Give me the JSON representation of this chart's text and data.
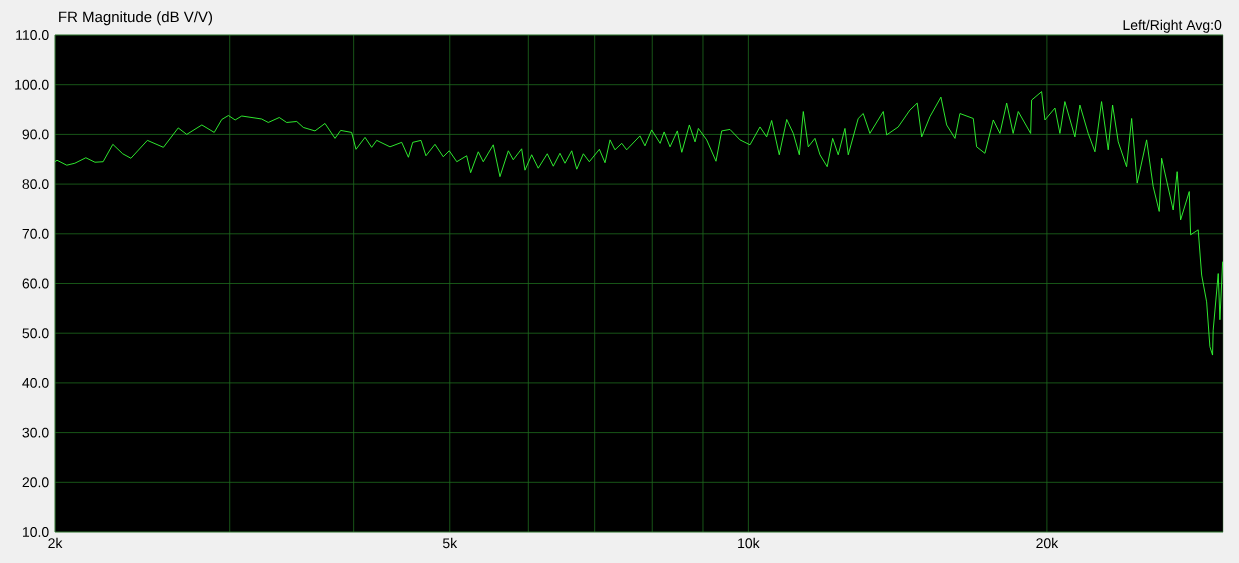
{
  "chart_data": {
    "type": "line",
    "title": "FR Magnitude (dB V/V)",
    "annotations": [
      "Left/Right  Avg:0"
    ],
    "log": "x",
    "grid": true,
    "marker": "none",
    "line_style": "solid",
    "xlim": [
      2000,
      30100
    ],
    "ylim": [
      10,
      110
    ],
    "xticks": [
      {
        "value": 2000,
        "label": "2k"
      },
      {
        "value": 3000,
        "label": null
      },
      {
        "value": 4000,
        "label": null
      },
      {
        "value": 5000,
        "label": "5k"
      },
      {
        "value": 6000,
        "label": null
      },
      {
        "value": 7000,
        "label": null
      },
      {
        "value": 8000,
        "label": null
      },
      {
        "value": 9000,
        "label": null
      },
      {
        "value": 10000,
        "label": "10k"
      },
      {
        "value": 20000,
        "label": "20k"
      }
    ],
    "yticks": [
      {
        "value": 10,
        "label": "10.0"
      },
      {
        "value": 20,
        "label": "20.0"
      },
      {
        "value": 30,
        "label": "30.0"
      },
      {
        "value": 40,
        "label": "40.0"
      },
      {
        "value": 50,
        "label": "50.0"
      },
      {
        "value": 60,
        "label": "60.0"
      },
      {
        "value": 70,
        "label": "70.0"
      },
      {
        "value": 80,
        "label": "80.0"
      },
      {
        "value": 90,
        "label": "90.0"
      },
      {
        "value": 100,
        "label": "100.0"
      },
      {
        "value": 110,
        "label": "110.0"
      }
    ],
    "x": [
      2000,
      2009,
      2055,
      2094,
      2148,
      2194,
      2236,
      2287,
      2340,
      2385,
      2478,
      2572,
      2662,
      2715,
      2812,
      2894,
      2945,
      2991,
      3038,
      3085,
      3231,
      3281,
      3366,
      3424,
      3505,
      3559,
      3657,
      3743,
      3831,
      3882,
      3982,
      4022,
      4107,
      4171,
      4220,
      4352,
      4472,
      4542,
      4588,
      4677,
      4731,
      4831,
      4925,
      4994,
      5082,
      5200,
      5248,
      5342,
      5404,
      5531,
      5618,
      5728,
      5794,
      5908,
      5954,
      6047,
      6140,
      6270,
      6358,
      6458,
      6534,
      6637,
      6714,
      6818,
      6913,
      7076,
      7170,
      7254,
      7338,
      7454,
      7540,
      7776,
      7868,
      7991,
      8148,
      8224,
      8338,
      8480,
      8568,
      8720,
      8836,
      8904,
      9078,
      9276,
      9400,
      9582,
      9808,
      10038,
      10274,
      10434,
      10556,
      10744,
      10932,
      11100,
      11256,
      11360,
      11492,
      11672,
      11808,
      12008,
      12162,
      12320,
      12514,
      12610,
      12906,
      13056,
      13260,
      13678,
      13786,
      14162,
      14552,
      14800,
      14954,
      15246,
      15638,
      15848,
      16156,
      16344,
      16856,
      16988,
      17320,
      17658,
      17934,
      18216,
      18494,
      18714,
      19260,
      19304,
      19758,
      19908,
      20376,
      20612,
      20850,
      21342,
      21592,
      22010,
      22358,
      22704,
      23058,
      23292,
      23600,
      24062,
      24346,
      24662,
      25208,
      25594,
      25956,
      26100,
      26810,
      27060,
      27278,
      27830,
      27920,
      28414,
      28644,
      28976,
      29198,
      29378,
      29420,
      29768,
      29884,
      30072
    ],
    "series": [
      {
        "color": "#33ff33",
        "values": [
          84.5,
          84.8,
          83.8,
          84.2,
          85.3,
          84.4,
          84.5,
          88.0,
          86.1,
          85.2,
          88.8,
          87.4,
          91.3,
          90.0,
          91.9,
          90.4,
          93.0,
          93.8,
          92.9,
          93.7,
          93.1,
          92.4,
          93.4,
          92.4,
          92.6,
          91.4,
          90.7,
          92.2,
          89.2,
          90.8,
          90.4,
          87.0,
          89.4,
          87.4,
          88.8,
          87.5,
          88.4,
          85.4,
          88.4,
          88.8,
          85.7,
          88.0,
          85.5,
          86.7,
          84.5,
          85.7,
          82.3,
          86.5,
          84.5,
          87.9,
          81.5,
          86.7,
          84.9,
          87.1,
          82.8,
          85.9,
          83.2,
          86.1,
          83.6,
          86.2,
          84.2,
          86.7,
          83.0,
          86.1,
          84.5,
          87.0,
          84.3,
          88.9,
          86.9,
          88.2,
          86.9,
          89.7,
          87.7,
          90.9,
          88.2,
          90.5,
          87.5,
          90.7,
          86.4,
          91.9,
          88.5,
          91.2,
          88.9,
          84.6,
          90.7,
          91.0,
          88.9,
          87.9,
          91.5,
          89.5,
          92.8,
          85.9,
          93.0,
          90.2,
          85.9,
          94.6,
          87.5,
          89.2,
          85.9,
          83.5,
          89.2,
          85.9,
          91.2,
          85.9,
          93.2,
          94.2,
          90.2,
          94.6,
          89.9,
          91.5,
          94.9,
          96.3,
          89.5,
          93.6,
          97.5,
          91.9,
          89.2,
          94.2,
          93.2,
          87.5,
          86.2,
          92.9,
          90.2,
          96.3,
          90.2,
          94.6,
          90.2,
          96.9,
          98.6,
          92.9,
          95.3,
          90.2,
          96.6,
          89.5,
          95.9,
          90.2,
          86.5,
          96.6,
          86.9,
          95.9,
          88.5,
          83.5,
          93.2,
          80.2,
          88.9,
          79.5,
          74.5,
          85.2,
          74.8,
          82.5,
          72.8,
          78.5,
          69.8,
          70.8,
          61.7,
          56.3,
          47.3,
          45.6,
          50.6,
          62.0,
          52.7,
          64.4
        ]
      }
    ]
  }
}
